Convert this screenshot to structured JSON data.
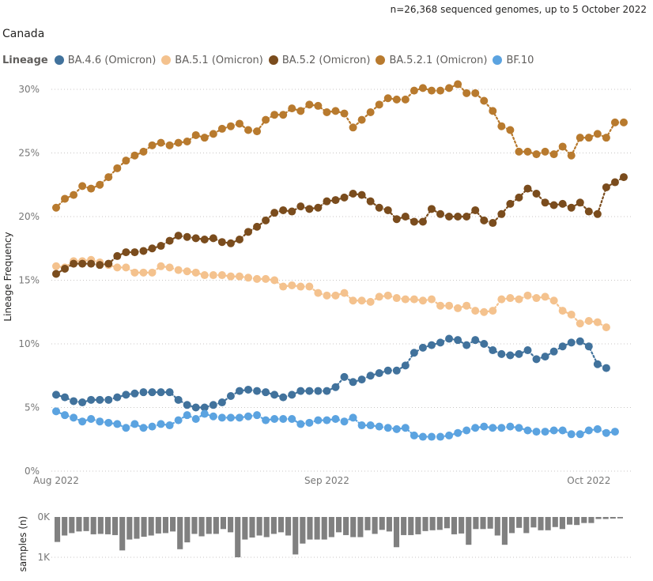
{
  "header": {
    "subtitle": "n=26,368 sequenced genomes, up to 5 October 2022",
    "region": "Canada"
  },
  "legend": {
    "title": "Lineage"
  },
  "chart_data": [
    {
      "type": "line",
      "title": "Canada",
      "ylabel": "Lineage Frequency",
      "xlabel": "",
      "ylim": [
        0,
        30
      ],
      "y_ticks": [
        "0%",
        "5%",
        "10%",
        "15%",
        "20%",
        "25%",
        "30%"
      ],
      "x_ticks": [
        "Aug 2022",
        "Sep 2022",
        "Oct 2022"
      ],
      "x_start": "2022-08-01",
      "grid": true,
      "series": [
        {
          "name": "BA.4.6 (Omicron)",
          "color": "#41729c",
          "values": [
            6.0,
            5.8,
            5.5,
            5.4,
            5.6,
            5.6,
            5.6,
            5.8,
            6.0,
            6.1,
            6.2,
            6.2,
            6.2,
            6.2,
            5.6,
            5.2,
            5.0,
            5.0,
            5.2,
            5.4,
            5.9,
            6.3,
            6.4,
            6.3,
            6.2,
            6.0,
            5.8,
            6.0,
            6.3,
            6.3,
            6.3,
            6.3,
            6.6,
            7.4,
            7.0,
            7.2,
            7.5,
            7.7,
            7.9,
            7.9,
            8.3,
            9.3,
            9.7,
            9.9,
            10.1,
            10.4,
            10.3,
            9.9,
            10.3,
            10.0,
            9.5,
            9.2,
            9.1,
            9.2,
            9.5,
            8.8,
            9.0,
            9.4,
            9.8,
            10.1,
            10.2,
            9.8,
            8.4,
            8.1
          ]
        },
        {
          "name": "BA.5.1 (Omicron)",
          "color": "#f4c28e",
          "values": [
            16.1,
            16.0,
            16.5,
            16.5,
            16.6,
            16.4,
            16.2,
            16.0,
            16.0,
            15.6,
            15.6,
            15.6,
            16.1,
            16.0,
            15.8,
            15.7,
            15.6,
            15.4,
            15.4,
            15.4,
            15.3,
            15.3,
            15.2,
            15.1,
            15.1,
            15.0,
            14.5,
            14.6,
            14.5,
            14.5,
            14.0,
            13.8,
            13.8,
            14.0,
            13.4,
            13.4,
            13.3,
            13.7,
            13.8,
            13.6,
            13.5,
            13.5,
            13.4,
            13.5,
            13.0,
            13.0,
            12.8,
            13.0,
            12.6,
            12.5,
            12.6,
            13.5,
            13.6,
            13.5,
            13.8,
            13.6,
            13.7,
            13.4,
            12.6,
            12.3,
            11.6,
            11.8,
            11.7,
            11.3
          ]
        },
        {
          "name": "BA.5.2 (Omicron)",
          "color": "#7a4c1d",
          "values": [
            15.5,
            15.9,
            16.3,
            16.3,
            16.3,
            16.2,
            16.3,
            16.9,
            17.2,
            17.2,
            17.3,
            17.5,
            17.7,
            18.1,
            18.5,
            18.4,
            18.3,
            18.2,
            18.3,
            18.0,
            17.9,
            18.2,
            18.8,
            19.2,
            19.7,
            20.3,
            20.5,
            20.4,
            20.8,
            20.6,
            20.7,
            21.2,
            21.3,
            21.5,
            21.8,
            21.7,
            21.2,
            20.7,
            20.5,
            19.8,
            20.0,
            19.6,
            19.6,
            20.6,
            20.2,
            20.0,
            20.0,
            20.0,
            20.5,
            19.7,
            19.5,
            20.2,
            21.0,
            21.5,
            22.2,
            21.8,
            21.1,
            20.9,
            21.0,
            20.7,
            21.1,
            20.4,
            20.2,
            22.3,
            22.7,
            23.1
          ]
        },
        {
          "name": "BA.5.2.1 (Omicron)",
          "color": "#b87a2e",
          "values": [
            20.7,
            21.4,
            21.7,
            22.4,
            22.2,
            22.5,
            23.1,
            23.8,
            24.4,
            24.8,
            25.1,
            25.6,
            25.8,
            25.6,
            25.8,
            25.9,
            26.4,
            26.2,
            26.5,
            26.9,
            27.1,
            27.3,
            26.8,
            26.7,
            27.6,
            28.0,
            28.0,
            28.5,
            28.3,
            28.8,
            28.7,
            28.2,
            28.3,
            28.1,
            27.0,
            27.6,
            28.2,
            28.8,
            29.3,
            29.2,
            29.2,
            29.9,
            30.1,
            29.9,
            29.9,
            30.1,
            30.4,
            29.7,
            29.7,
            29.1,
            28.3,
            27.1,
            26.8,
            25.1,
            25.1,
            24.9,
            25.1,
            24.9,
            25.5,
            24.8,
            26.2,
            26.2,
            26.5,
            26.2,
            27.4,
            27.4
          ]
        },
        {
          "name": "BF.10",
          "color": "#5ba3e0",
          "values": [
            4.7,
            4.4,
            4.2,
            3.9,
            4.1,
            3.9,
            3.8,
            3.7,
            3.4,
            3.7,
            3.4,
            3.5,
            3.7,
            3.6,
            4.0,
            4.4,
            4.1,
            4.5,
            4.3,
            4.2,
            4.2,
            4.2,
            4.3,
            4.4,
            4.0,
            4.1,
            4.1,
            4.1,
            3.7,
            3.8,
            4.0,
            4.0,
            4.1,
            3.9,
            4.2,
            3.6,
            3.6,
            3.5,
            3.4,
            3.3,
            3.4,
            2.8,
            2.7,
            2.7,
            2.7,
            2.8,
            3.0,
            3.2,
            3.4,
            3.5,
            3.4,
            3.4,
            3.5,
            3.4,
            3.2,
            3.1,
            3.1,
            3.2,
            3.2,
            2.9,
            2.9,
            3.2,
            3.3,
            3.0,
            3.1
          ]
        }
      ]
    },
    {
      "type": "bar",
      "ylabel": "samples (n)",
      "y_ticks": [
        "0K",
        "1K"
      ],
      "ylim": [
        0,
        1000
      ],
      "orientation": "downward",
      "values": [
        620,
        460,
        400,
        360,
        350,
        430,
        420,
        430,
        450,
        830,
        560,
        540,
        490,
        460,
        410,
        400,
        360,
        800,
        630,
        420,
        480,
        420,
        420,
        300,
        380,
        1000,
        560,
        510,
        460,
        500,
        420,
        380,
        460,
        930,
        660,
        560,
        560,
        560,
        500,
        380,
        450,
        500,
        500,
        330,
        420,
        320,
        360,
        750,
        450,
        450,
        430,
        350,
        330,
        320,
        280,
        430,
        410,
        690,
        300,
        300,
        290,
        460,
        690,
        400,
        270,
        400,
        260,
        330,
        330,
        250,
        300,
        190,
        200,
        150,
        150,
        50,
        50,
        40,
        35
      ]
    }
  ]
}
